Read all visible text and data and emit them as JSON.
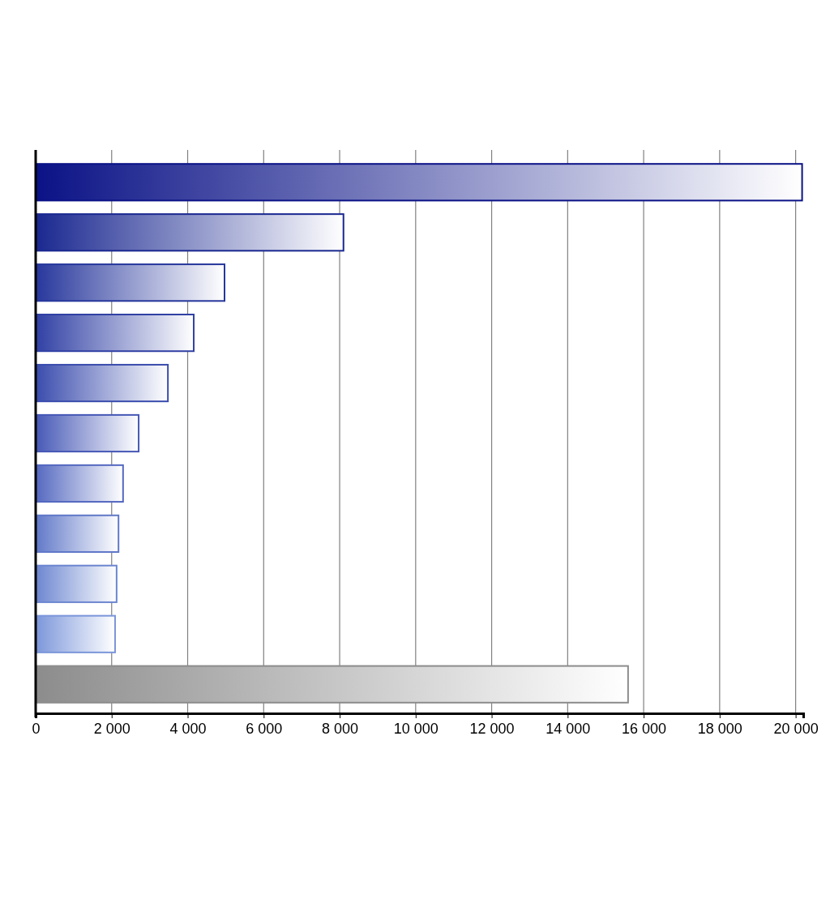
{
  "chart_data": {
    "type": "bar",
    "orientation": "horizontal",
    "categories": [
      null,
      null,
      null,
      null,
      null,
      null,
      null,
      null,
      null,
      null,
      null
    ],
    "values": [
      20170,
      8100,
      4970,
      4160,
      3480,
      2710,
      2300,
      2180,
      2130,
      2090,
      15590
    ],
    "colors": [
      "#0a1286",
      "#1a2890",
      "#27379c",
      "#3040a4",
      "#3a4cad",
      "#4658b6",
      "#5468c0",
      "#6078c8",
      "#6c86d0",
      "#7b96da",
      "#8c8c8c"
    ],
    "xlim": [
      0,
      20200
    ],
    "xticks": [
      0,
      {
        "value": 2000,
        "label": "2 000"
      },
      {
        "value": 4000,
        "label": "4 000"
      },
      {
        "value": 6000,
        "label": "6 000"
      },
      {
        "value": 8000,
        "label": "8 000"
      },
      {
        "value": 10000,
        "label": "10 000"
      },
      {
        "value": 12000,
        "label": "12 000"
      },
      {
        "value": 14000,
        "label": "14 000"
      },
      {
        "value": 16000,
        "label": "16 000"
      },
      {
        "value": 18000,
        "label": "18 000"
      },
      {
        "value": 20000,
        "label": "20 000"
      }
    ],
    "grid": "x",
    "tick_labels": "x"
  }
}
